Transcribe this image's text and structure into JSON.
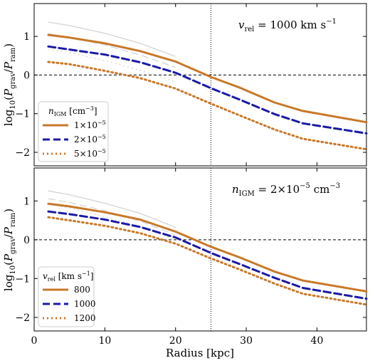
{
  "chart_data": [
    {
      "type": "line",
      "ylabel": "log10(P_grav/P_ram)",
      "annotation": "v_rel = 1000 km s^-1",
      "legend_title": "n_IGM [cm^-3]",
      "legend_placement": "lower-left",
      "xlim": [
        0,
        47
      ],
      "ylim": [
        -2.35,
        1.85
      ],
      "yticks": [
        -2,
        -1,
        0,
        1
      ],
      "reference_lines": {
        "horizontal": 0,
        "vertical": 25
      },
      "x": [
        2,
        5,
        10,
        15,
        20,
        25,
        29,
        34,
        38,
        47
      ],
      "series": [
        {
          "name": "1×10^-5",
          "color": "#c87828",
          "dash": "solid",
          "values": [
            1.04,
            0.97,
            0.82,
            0.62,
            0.35,
            -0.05,
            -0.32,
            -0.71,
            -0.93,
            -1.22
          ]
        },
        {
          "name": "2×10^-5",
          "color": "#1a1aa8",
          "dash": "dashed",
          "values": [
            0.74,
            0.66,
            0.53,
            0.33,
            0.06,
            -0.34,
            -0.63,
            -1.01,
            -1.25,
            -1.51
          ]
        },
        {
          "name": "5×10^-5",
          "color": "#c87828",
          "dash": "dotted",
          "values": [
            0.34,
            0.28,
            0.11,
            -0.08,
            -0.35,
            -0.74,
            -1.04,
            -1.41,
            -1.65,
            -1.92
          ]
        }
      ],
      "background_series": [
        {
          "color": "#d4d4d4",
          "dash": "solid",
          "values": [
            1.37,
            1.28,
            1.08,
            0.82,
            0.48
          ]
        },
        {
          "color": "#d4d4d4",
          "dash": "dashed",
          "values": [
            1.07,
            0.97,
            0.78,
            0.52,
            0.2
          ]
        },
        {
          "color": "#d4d4d4",
          "dash": "dotted",
          "values": [
            0.67,
            0.58,
            0.37,
            0.12,
            -0.18
          ]
        }
      ]
    },
    {
      "type": "line",
      "ylabel": "log10(P_grav/P_ram)",
      "xlabel": "Radius [kpc]",
      "annotation": "n_IGM = 2×10^-5 cm^-3",
      "legend_title": "v_rel [km s^-1]",
      "legend_placement": "lower-left",
      "xlim": [
        0,
        47
      ],
      "ylim": [
        -2.35,
        1.85
      ],
      "xticks": [
        0,
        10,
        20,
        30,
        40
      ],
      "yticks": [
        -2,
        -1,
        0,
        1
      ],
      "reference_lines": {
        "horizontal": 0,
        "vertical": 25
      },
      "x": [
        2,
        5,
        10,
        15,
        20,
        25,
        29,
        34,
        38,
        47
      ],
      "series": [
        {
          "name": "800",
          "color": "#c87828",
          "dash": "solid",
          "values": [
            0.93,
            0.86,
            0.71,
            0.52,
            0.21,
            -0.18,
            -0.45,
            -0.82,
            -1.05,
            -1.33
          ]
        },
        {
          "name": "1000",
          "color": "#1a1aa8",
          "dash": "dashed",
          "values": [
            0.73,
            0.66,
            0.52,
            0.33,
            0.06,
            -0.34,
            -0.62,
            -0.98,
            -1.24,
            -1.52
          ]
        },
        {
          "name": "1200",
          "color": "#c87828",
          "dash": "dotted",
          "values": [
            0.58,
            0.5,
            0.36,
            0.17,
            -0.1,
            -0.48,
            -0.76,
            -1.13,
            -1.39,
            -1.67
          ]
        }
      ],
      "background_series": [
        {
          "color": "#d4d4d4",
          "dash": "solid",
          "values": [
            1.26,
            1.16,
            0.94,
            0.68,
            0.32
          ]
        },
        {
          "color": "#d4d4d4",
          "dash": "dashed",
          "values": [
            1.06,
            0.96,
            0.75,
            0.48,
            0.12
          ]
        },
        {
          "color": "#d4d4d4",
          "dash": "dotted",
          "values": [
            0.92,
            0.82,
            0.6,
            0.34,
            0.0
          ]
        }
      ]
    }
  ]
}
